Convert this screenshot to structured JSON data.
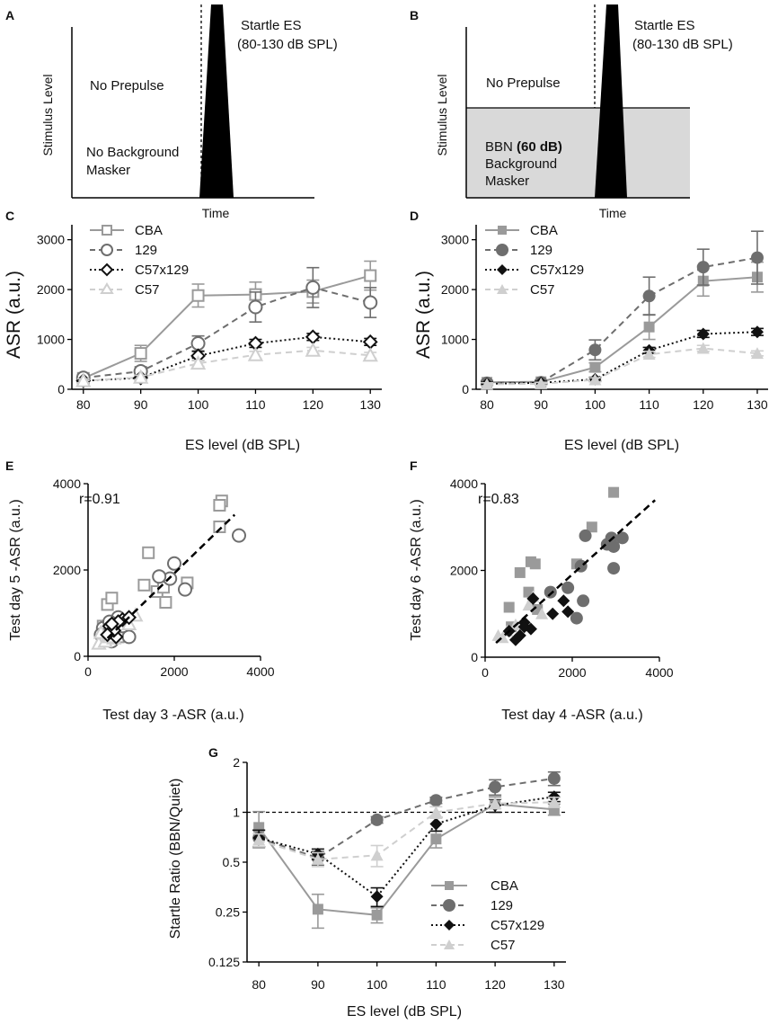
{
  "colors": {
    "CBA": "#9a9a9a",
    "129": "#6e6e6e",
    "C57x129": "#111111",
    "C57": "#cfcfcf",
    "masker": "#d9d9d9",
    "black": "#000000"
  },
  "panelA": {
    "label": "A",
    "ylabel": "Stimulus Level",
    "xlabel": "Time",
    "startle_title": "Startle ES",
    "startle_range": "(80-130 dB SPL)",
    "prepulse": "No Prepulse",
    "masker_line1": "No Background",
    "masker_line2": "Masker"
  },
  "panelB": {
    "label": "B",
    "ylabel": "Stimulus Level",
    "xlabel": "Time",
    "startle_title": "Startle ES",
    "startle_range": "(80-130 dB SPL)",
    "prepulse": "No Prepulse",
    "masker_bbn": "BBN",
    "masker_level": "(60 dB)",
    "masker_line2": "Background",
    "masker_line3": "Masker"
  },
  "chart_data": [
    {
      "id": "C",
      "panel_label": "C",
      "type": "line",
      "ylabel": "ASR (a.u.)",
      "xlabel": "ES level (dB SPL)",
      "x": [
        80,
        90,
        100,
        110,
        120,
        130
      ],
      "xlim": [
        78,
        132
      ],
      "ylim": [
        0,
        3300
      ],
      "xticks": [
        "80",
        "90",
        "100",
        "110",
        "120",
        "130"
      ],
      "yticks": [
        "0",
        "1000",
        "2000",
        "3000"
      ],
      "ytick_values": [
        0,
        1000,
        2000,
        3000
      ],
      "marker_fill": "open",
      "series": [
        {
          "name": "CBA",
          "values": [
            220,
            720,
            1880,
            1900,
            1960,
            2280
          ],
          "errors": [
            70,
            160,
            230,
            250,
            230,
            290
          ]
        },
        {
          "name": "129",
          "values": [
            230,
            360,
            920,
            1650,
            2040,
            1740
          ],
          "errors": [
            60,
            90,
            150,
            300,
            400,
            300
          ]
        },
        {
          "name": "C57x129",
          "values": [
            170,
            230,
            670,
            920,
            1050,
            950
          ],
          "errors": [
            40,
            40,
            90,
            80,
            70,
            70
          ]
        },
        {
          "name": "C57",
          "values": [
            170,
            240,
            520,
            690,
            780,
            680
          ],
          "errors": [
            40,
            40,
            60,
            70,
            60,
            60
          ]
        }
      ]
    },
    {
      "id": "D",
      "panel_label": "D",
      "type": "line",
      "ylabel": "ASR (a.u.)",
      "xlabel": "ES level (dB SPL)",
      "x": [
        80,
        90,
        100,
        110,
        120,
        130
      ],
      "xlim": [
        78,
        132
      ],
      "ylim": [
        0,
        3300
      ],
      "xticks": [
        "80",
        "90",
        "100",
        "110",
        "120",
        "130"
      ],
      "yticks": [
        "0",
        "1000",
        "2000",
        "3000"
      ],
      "ytick_values": [
        0,
        1000,
        2000,
        3000
      ],
      "marker_fill": "filled",
      "series": [
        {
          "name": "CBA",
          "values": [
            140,
            150,
            440,
            1250,
            2170,
            2250
          ],
          "errors": [
            40,
            40,
            90,
            250,
            300,
            300
          ]
        },
        {
          "name": "129",
          "values": [
            130,
            140,
            790,
            1870,
            2450,
            2640
          ],
          "errors": [
            40,
            40,
            200,
            380,
            360,
            530
          ]
        },
        {
          "name": "C57x129",
          "values": [
            110,
            130,
            200,
            780,
            1110,
            1150
          ],
          "errors": [
            30,
            30,
            40,
            60,
            70,
            70
          ]
        },
        {
          "name": "C57",
          "values": [
            100,
            110,
            190,
            700,
            820,
            720
          ],
          "errors": [
            30,
            30,
            40,
            60,
            60,
            50
          ]
        }
      ]
    },
    {
      "id": "E",
      "panel_label": "E",
      "type": "scatter",
      "ylabel": "Test day 5 -ASR (a.u.)",
      "xlabel": "Test day 3 -ASR (a.u.)",
      "annotation": "r=0.91",
      "xlim": [
        0,
        4000
      ],
      "ylim": [
        0,
        4000
      ],
      "xticks": [
        "0",
        "2000",
        "4000"
      ],
      "yticks": [
        "0",
        "2000",
        "4000"
      ],
      "tick_values": [
        0,
        2000,
        4000
      ],
      "marker_fill": "open",
      "fit_line": {
        "x0": 450,
        "y0": 420,
        "x1": 3400,
        "y1": 3280
      },
      "points": {
        "CBA": [
          [
            450,
            1200
          ],
          [
            550,
            1350
          ],
          [
            3100,
            3600
          ],
          [
            3050,
            3500
          ],
          [
            3050,
            3000
          ],
          [
            1400,
            2400
          ],
          [
            1300,
            1650
          ],
          [
            1600,
            1500
          ],
          [
            2300,
            1700
          ],
          [
            1800,
            1250
          ],
          [
            1750,
            1600
          ],
          [
            350,
            700
          ],
          [
            700,
            450
          ]
        ],
        "129": [
          [
            3500,
            2800
          ],
          [
            2000,
            2150
          ],
          [
            1900,
            1800
          ],
          [
            1650,
            1850
          ],
          [
            2250,
            1550
          ],
          [
            950,
            450
          ],
          [
            800,
            700
          ],
          [
            700,
            900
          ],
          [
            350,
            650
          ],
          [
            500,
            800
          ],
          [
            550,
            350
          ],
          [
            300,
            500
          ]
        ],
        "C57x129": [
          [
            500,
            700
          ],
          [
            650,
            450
          ],
          [
            800,
            850
          ],
          [
            600,
            600
          ],
          [
            950,
            900
          ],
          [
            450,
            500
          ],
          [
            700,
            800
          ],
          [
            550,
            750
          ]
        ],
        "C57": [
          [
            250,
            300
          ],
          [
            400,
            350
          ],
          [
            600,
            420
          ],
          [
            950,
            750
          ],
          [
            1100,
            950
          ],
          [
            300,
            550
          ],
          [
            500,
            450
          ]
        ]
      }
    },
    {
      "id": "F",
      "panel_label": "F",
      "type": "scatter",
      "ylabel": "Test day 6 -ASR (a.u.)",
      "xlabel": "Test day 4 -ASR (a.u.)",
      "annotation": "r=0.83",
      "xlim": [
        0,
        4000
      ],
      "ylim": [
        0,
        4000
      ],
      "xticks": [
        "0",
        "2000",
        "4000"
      ],
      "yticks": [
        "0",
        "2000",
        "4000"
      ],
      "tick_values": [
        0,
        2000,
        4000
      ],
      "marker_fill": "filled",
      "fit_line": {
        "x0": 250,
        "y0": 330,
        "x1": 3900,
        "y1": 3620
      },
      "points": {
        "CBA": [
          [
            2950,
            3800
          ],
          [
            2450,
            3000
          ],
          [
            1050,
            2200
          ],
          [
            1150,
            2150
          ],
          [
            800,
            1950
          ],
          [
            2100,
            2150
          ],
          [
            550,
            1150
          ],
          [
            1000,
            1500
          ],
          [
            1200,
            1100
          ],
          [
            600,
            700
          ]
        ],
        "129": [
          [
            2900,
            2750
          ],
          [
            3150,
            2750
          ],
          [
            2950,
            2550
          ],
          [
            2950,
            2050
          ],
          [
            2800,
            2600
          ],
          [
            2300,
            2800
          ],
          [
            2200,
            2100
          ],
          [
            1900,
            1600
          ],
          [
            2250,
            1300
          ],
          [
            2100,
            900
          ],
          [
            1500,
            1500
          ]
        ],
        "C57x129": [
          [
            1100,
            1350
          ],
          [
            1800,
            1300
          ],
          [
            1900,
            1050
          ],
          [
            1550,
            1000
          ],
          [
            1050,
            650
          ],
          [
            900,
            800
          ],
          [
            800,
            500
          ],
          [
            700,
            400
          ],
          [
            900,
            700
          ],
          [
            550,
            600
          ]
        ],
        "C57": [
          [
            300,
            500
          ],
          [
            500,
            600
          ],
          [
            400,
            450
          ],
          [
            700,
            750
          ],
          [
            1000,
            1200
          ],
          [
            1300,
            1000
          ],
          [
            1100,
            1400
          ]
        ]
      }
    },
    {
      "id": "G",
      "panel_label": "G",
      "type": "line",
      "ylabel": "Startle Ratio (BBN/Quiet)",
      "xlabel": "ES level (dB SPL)",
      "x": [
        80,
        90,
        100,
        110,
        120,
        130
      ],
      "xlim": [
        78,
        132
      ],
      "ylim": [
        0.125,
        2
      ],
      "yscale": "log2",
      "xticks": [
        "80",
        "90",
        "100",
        "110",
        "120",
        "130"
      ],
      "yticks": [
        "0.125",
        "0.25",
        "0.5",
        "1",
        "2"
      ],
      "ytick_values": [
        0.125,
        0.25,
        0.5,
        1,
        2
      ],
      "reference_line": 1,
      "marker_fill": "filled",
      "series": [
        {
          "name": "CBA",
          "values": [
            0.81,
            0.26,
            0.24,
            0.69,
            1.12,
            1.04
          ],
          "errors": [
            0.2,
            0.06,
            0.025,
            0.08,
            0.12,
            0.08
          ]
        },
        {
          "name": "129",
          "values": [
            0.7,
            0.53,
            0.9,
            1.18,
            1.42,
            1.6
          ],
          "errors": [
            0.08,
            0.05,
            0.04,
            0.05,
            0.15,
            0.15
          ]
        },
        {
          "name": "C57x129",
          "values": [
            0.7,
            0.56,
            0.31,
            0.85,
            1.1,
            1.24
          ],
          "errors": [
            0.08,
            0.04,
            0.04,
            0.08,
            0.1,
            0.08
          ]
        },
        {
          "name": "C57",
          "values": [
            0.68,
            0.52,
            0.55,
            1.0,
            1.13,
            1.15
          ],
          "errors": [
            0.06,
            0.05,
            0.08,
            0.08,
            0.08,
            0.08
          ]
        }
      ]
    }
  ]
}
